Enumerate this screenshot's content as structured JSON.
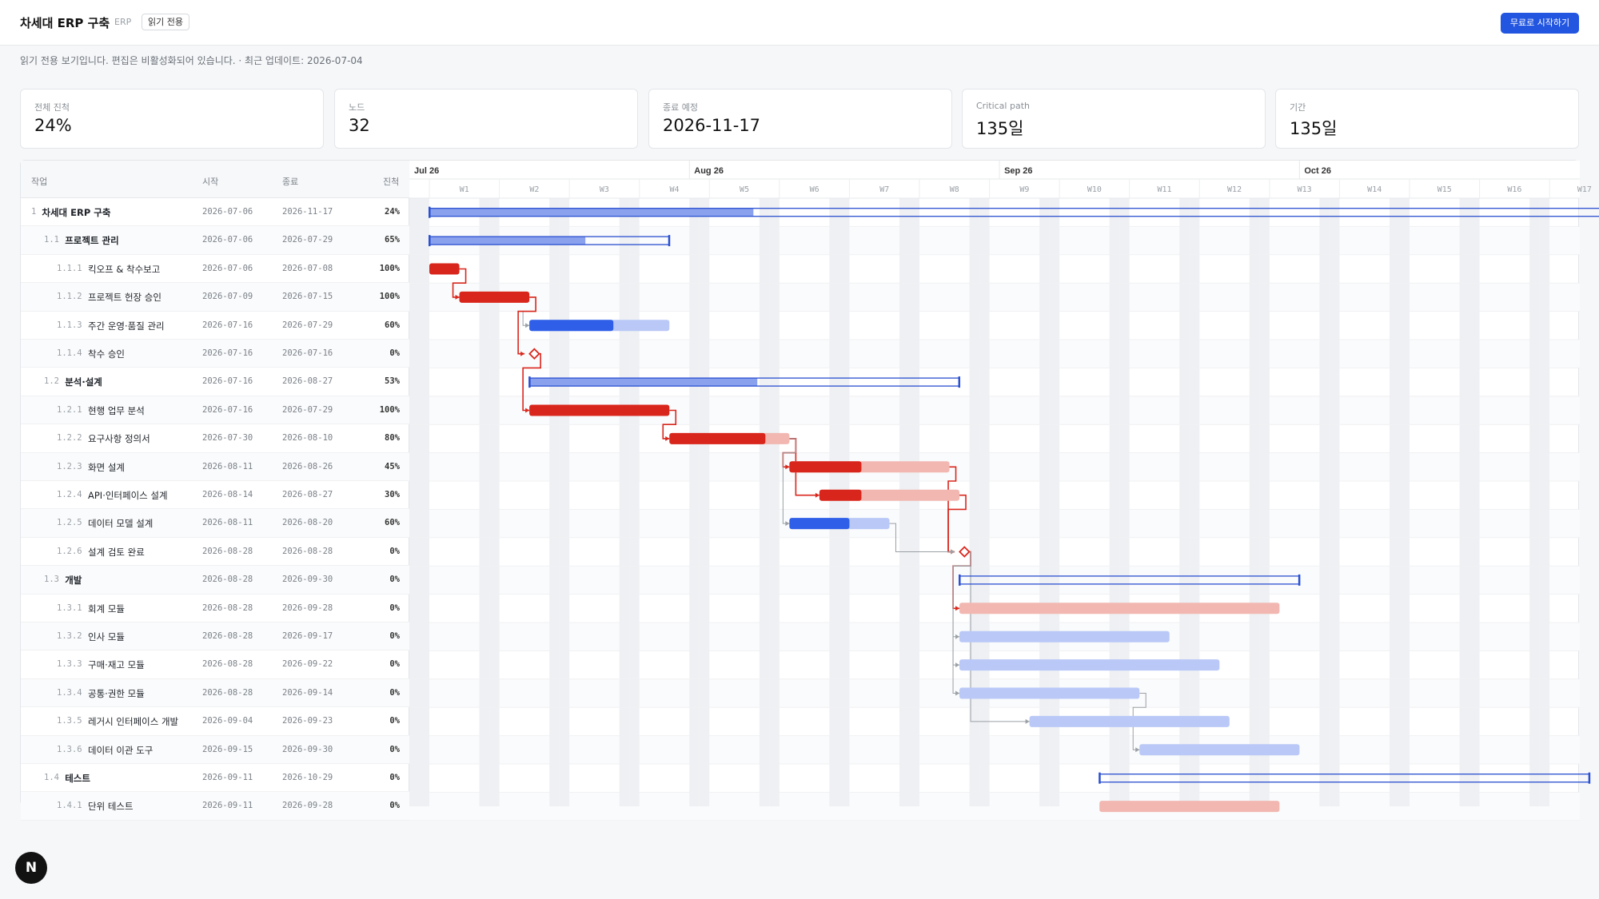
{
  "header": {
    "title": "차세대 ERP 구축",
    "tag": "ERP",
    "readonly_badge": "읽기 전용",
    "cta_label": "무료로 시작하기"
  },
  "notice": "읽기 전용 보기입니다. 편집은 비활성화되어 있습니다.  · 최근 업데이트: 2026-07-04",
  "stats": [
    {
      "label": "전체 진척",
      "value": "24%"
    },
    {
      "label": "노드",
      "value": "32"
    },
    {
      "label": "종료 예정",
      "value": "2026-11-17"
    },
    {
      "label": "Critical path",
      "value": "135일"
    },
    {
      "label": "기간",
      "value": "135일"
    }
  ],
  "table": {
    "columns": {
      "task": "작업",
      "start": "시작",
      "end": "종료",
      "progress": "진척"
    },
    "rows": [
      {
        "wbs": "1",
        "name": "차세대 ERP 구축",
        "start": "2026-07-06",
        "end": "2026-11-17",
        "progress": "24%",
        "level": 0,
        "group": true
      },
      {
        "wbs": "1.1",
        "name": "프로젝트 관리",
        "start": "2026-07-06",
        "end": "2026-07-29",
        "progress": "65%",
        "level": 1,
        "group": true
      },
      {
        "wbs": "1.1.1",
        "name": "킥오프 & 착수보고",
        "start": "2026-07-06",
        "end": "2026-07-08",
        "progress": "100%",
        "level": 2,
        "group": false
      },
      {
        "wbs": "1.1.2",
        "name": "프로젝트 헌장 승인",
        "start": "2026-07-09",
        "end": "2026-07-15",
        "progress": "100%",
        "level": 2,
        "group": false
      },
      {
        "wbs": "1.1.3",
        "name": "주간 운영·품질 관리",
        "start": "2026-07-16",
        "end": "2026-07-29",
        "progress": "60%",
        "level": 2,
        "group": false
      },
      {
        "wbs": "1.1.4",
        "name": "착수 승인",
        "start": "2026-07-16",
        "end": "2026-07-16",
        "progress": "0%",
        "level": 2,
        "group": false
      },
      {
        "wbs": "1.2",
        "name": "분석·설계",
        "start": "2026-07-16",
        "end": "2026-08-27",
        "progress": "53%",
        "level": 1,
        "group": true
      },
      {
        "wbs": "1.2.1",
        "name": "현행 업무 분석",
        "start": "2026-07-16",
        "end": "2026-07-29",
        "progress": "100%",
        "level": 2,
        "group": false
      },
      {
        "wbs": "1.2.2",
        "name": "요구사항 정의서",
        "start": "2026-07-30",
        "end": "2026-08-10",
        "progress": "80%",
        "level": 2,
        "group": false
      },
      {
        "wbs": "1.2.3",
        "name": "화면 설계",
        "start": "2026-08-11",
        "end": "2026-08-26",
        "progress": "45%",
        "level": 2,
        "group": false
      },
      {
        "wbs": "1.2.4",
        "name": "API·인터페이스 설계",
        "start": "2026-08-14",
        "end": "2026-08-27",
        "progress": "30%",
        "level": 2,
        "group": false
      },
      {
        "wbs": "1.2.5",
        "name": "데이터 모델 설계",
        "start": "2026-08-11",
        "end": "2026-08-20",
        "progress": "60%",
        "level": 2,
        "group": false
      },
      {
        "wbs": "1.2.6",
        "name": "설계 검토 완료",
        "start": "2026-08-28",
        "end": "2026-08-28",
        "progress": "0%",
        "level": 2,
        "group": false
      },
      {
        "wbs": "1.3",
        "name": "개발",
        "start": "2026-08-28",
        "end": "2026-09-30",
        "progress": "0%",
        "level": 1,
        "group": true
      },
      {
        "wbs": "1.3.1",
        "name": "회계 모듈",
        "start": "2026-08-28",
        "end": "2026-09-28",
        "progress": "0%",
        "level": 2,
        "group": false
      },
      {
        "wbs": "1.3.2",
        "name": "인사 모듈",
        "start": "2026-08-28",
        "end": "2026-09-17",
        "progress": "0%",
        "level": 2,
        "group": false
      },
      {
        "wbs": "1.3.3",
        "name": "구매·재고 모듈",
        "start": "2026-08-28",
        "end": "2026-09-22",
        "progress": "0%",
        "level": 2,
        "group": false
      },
      {
        "wbs": "1.3.4",
        "name": "공통·권한 모듈",
        "start": "2026-08-28",
        "end": "2026-09-14",
        "progress": "0%",
        "level": 2,
        "group": false
      },
      {
        "wbs": "1.3.5",
        "name": "레거시 인터페이스 개발",
        "start": "2026-09-04",
        "end": "2026-09-23",
        "progress": "0%",
        "level": 2,
        "group": false
      },
      {
        "wbs": "1.3.6",
        "name": "데이터 이관 도구",
        "start": "2026-09-15",
        "end": "2026-09-30",
        "progress": "0%",
        "level": 2,
        "group": false
      },
      {
        "wbs": "1.4",
        "name": "테스트",
        "start": "2026-09-11",
        "end": "2026-10-29",
        "progress": "0%",
        "level": 1,
        "group": true
      },
      {
        "wbs": "1.4.1",
        "name": "단위 테스트",
        "start": "2026-09-11",
        "end": "2026-09-28",
        "progress": "0%",
        "level": 2,
        "group": false
      }
    ]
  },
  "gantt": {
    "months": [
      "Jul 26",
      "Aug 26",
      "Sep 26",
      "Oct 26"
    ],
    "weeks": [
      "W1",
      "W2",
      "W3",
      "W4",
      "W5",
      "W6",
      "W7",
      "W8",
      "W9",
      "W10",
      "W11",
      "W12",
      "W13",
      "W14",
      "W15",
      "W16",
      "W17"
    ],
    "tasks": [
      {
        "kind": "summary",
        "start": "2026-07-06",
        "end": "2026-11-17",
        "progress": 0.24,
        "critical": false
      },
      {
        "kind": "summary",
        "start": "2026-07-06",
        "end": "2026-07-29",
        "progress": 0.65,
        "critical": false
      },
      {
        "kind": "task",
        "start": "2026-07-06",
        "end": "2026-07-08",
        "progress": 1.0,
        "critical": true
      },
      {
        "kind": "task",
        "start": "2026-07-09",
        "end": "2026-07-15",
        "progress": 1.0,
        "critical": true
      },
      {
        "kind": "task",
        "start": "2026-07-16",
        "end": "2026-07-29",
        "progress": 0.6,
        "critical": false
      },
      {
        "kind": "milestone",
        "start": "2026-07-16",
        "end": "2026-07-16",
        "progress": 0,
        "critical": true
      },
      {
        "kind": "summary",
        "start": "2026-07-16",
        "end": "2026-08-27",
        "progress": 0.53,
        "critical": false
      },
      {
        "kind": "task",
        "start": "2026-07-16",
        "end": "2026-07-29",
        "progress": 1.0,
        "critical": true
      },
      {
        "kind": "task",
        "start": "2026-07-30",
        "end": "2026-08-10",
        "progress": 0.8,
        "critical": true
      },
      {
        "kind": "task",
        "start": "2026-08-11",
        "end": "2026-08-26",
        "progress": 0.45,
        "critical": true
      },
      {
        "kind": "task",
        "start": "2026-08-14",
        "end": "2026-08-27",
        "progress": 0.3,
        "critical": true
      },
      {
        "kind": "task",
        "start": "2026-08-11",
        "end": "2026-08-20",
        "progress": 0.6,
        "critical": false
      },
      {
        "kind": "milestone",
        "start": "2026-08-28",
        "end": "2026-08-28",
        "progress": 0,
        "critical": true
      },
      {
        "kind": "summary",
        "start": "2026-08-28",
        "end": "2026-09-30",
        "progress": 0,
        "critical": false
      },
      {
        "kind": "task",
        "start": "2026-08-28",
        "end": "2026-09-28",
        "progress": 0,
        "critical": true
      },
      {
        "kind": "task",
        "start": "2026-08-28",
        "end": "2026-09-17",
        "progress": 0,
        "critical": false
      },
      {
        "kind": "task",
        "start": "2026-08-28",
        "end": "2026-09-22",
        "progress": 0,
        "critical": false
      },
      {
        "kind": "task",
        "start": "2026-08-28",
        "end": "2026-09-14",
        "progress": 0,
        "critical": false
      },
      {
        "kind": "task",
        "start": "2026-09-04",
        "end": "2026-09-23",
        "progress": 0,
        "critical": false
      },
      {
        "kind": "task",
        "start": "2026-09-15",
        "end": "2026-09-30",
        "progress": 0,
        "critical": false
      },
      {
        "kind": "summary",
        "start": "2026-09-11",
        "end": "2026-10-29",
        "progress": 0,
        "critical": false
      },
      {
        "kind": "task",
        "start": "2026-09-11",
        "end": "2026-09-28",
        "progress": 0,
        "critical": true
      }
    ],
    "dependencies": [
      {
        "from": 2,
        "to": 3,
        "critical": true
      },
      {
        "from": 3,
        "to": 4,
        "critical": false
      },
      {
        "from": 3,
        "to": 5,
        "critical": true
      },
      {
        "from": 5,
        "to": 7,
        "critical": true
      },
      {
        "from": 7,
        "to": 8,
        "critical": true
      },
      {
        "from": 8,
        "to": 9,
        "critical": true
      },
      {
        "from": 8,
        "to": 10,
        "critical": true
      },
      {
        "from": 8,
        "to": 11,
        "critical": false
      },
      {
        "from": 9,
        "to": 12,
        "critical": true
      },
      {
        "from": 10,
        "to": 12,
        "critical": true
      },
      {
        "from": 11,
        "to": 12,
        "critical": false
      },
      {
        "from": 12,
        "to": 14,
        "critical": true
      },
      {
        "from": 12,
        "to": 15,
        "critical": false
      },
      {
        "from": 12,
        "to": 16,
        "critical": false
      },
      {
        "from": 12,
        "to": 17,
        "critical": false
      },
      {
        "from": 12,
        "to": 18,
        "critical": false
      },
      {
        "from": 17,
        "to": 19,
        "critical": false
      }
    ],
    "colors": {
      "critical": "#d9261c",
      "critical_remaining": "#f2b7b1",
      "normal": "#2f5fe8",
      "normal_remaining": "#b9c8f7",
      "summary_fill": "#8aa2ee",
      "summary_border": "#2a4fd1",
      "link": "#9aa0a6",
      "weekend": "#eef0f3"
    }
  },
  "fab_label": "N"
}
